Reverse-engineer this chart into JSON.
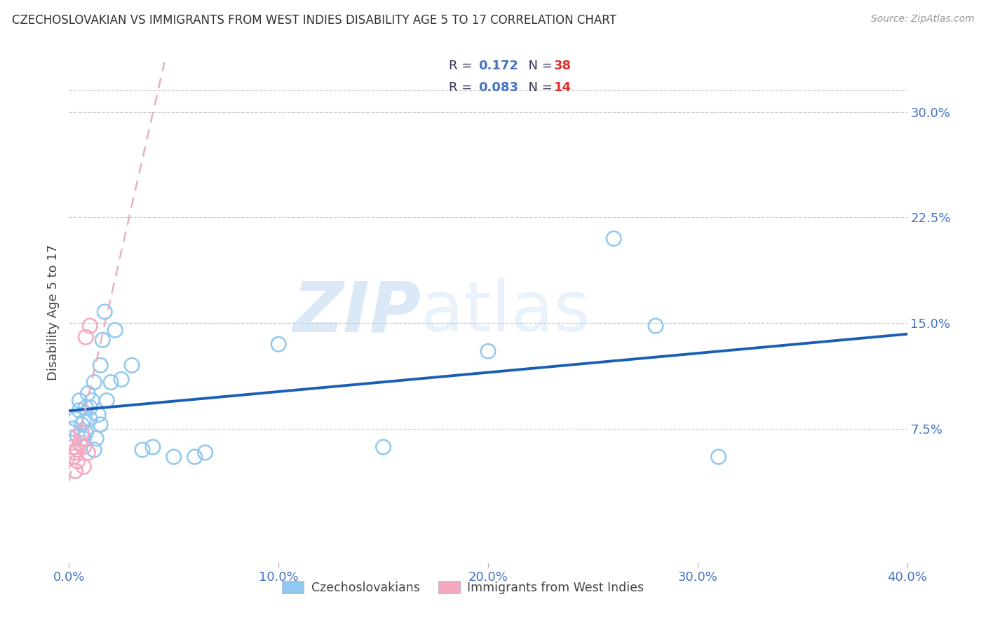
{
  "title": "CZECHOSLOVAKIAN VS IMMIGRANTS FROM WEST INDIES DISABILITY AGE 5 TO 17 CORRELATION CHART",
  "source": "Source: ZipAtlas.com",
  "ylabel": "Disability Age 5 to 17",
  "xlim": [
    0.0,
    0.4
  ],
  "ylim": [
    -0.02,
    0.335
  ],
  "xlabel_vals": [
    0.0,
    0.1,
    0.2,
    0.3,
    0.4
  ],
  "xlabel_labels": [
    "0.0%",
    "10.0%",
    "20.0%",
    "30.0%",
    "40.0%"
  ],
  "ylabel_vals": [
    0.075,
    0.15,
    0.225,
    0.3
  ],
  "ylabel_labels": [
    "7.5%",
    "15.0%",
    "22.5%",
    "30.0%"
  ],
  "color_blue": "#90C8F0",
  "color_pink": "#F5A8C0",
  "trendline_blue": "#1A5FB4",
  "trendline_pink": "#E8B0C0",
  "grid_color": "#CCCCCC",
  "tick_color": "#4472C4",
  "title_color": "#333333",
  "source_color": "#999999",
  "legend1_label": "Czechoslovakians",
  "legend2_label": "Immigrants from West Indies",
  "R1": "0.172",
  "N1": "38",
  "R2": "0.083",
  "N2": "14",
  "watermark_zip": "ZIP",
  "watermark_atlas": "atlas",
  "blue_x": [
    0.002,
    0.003,
    0.004,
    0.005,
    0.005,
    0.006,
    0.007,
    0.007,
    0.008,
    0.008,
    0.009,
    0.01,
    0.01,
    0.011,
    0.012,
    0.012,
    0.013,
    0.014,
    0.015,
    0.015,
    0.016,
    0.017,
    0.018,
    0.02,
    0.022,
    0.025,
    0.03,
    0.035,
    0.04,
    0.05,
    0.06,
    0.065,
    0.1,
    0.15,
    0.2,
    0.26,
    0.28,
    0.31
  ],
  "blue_y": [
    0.075,
    0.082,
    0.07,
    0.088,
    0.095,
    0.078,
    0.068,
    0.08,
    0.072,
    0.09,
    0.1,
    0.082,
    0.09,
    0.095,
    0.06,
    0.108,
    0.068,
    0.085,
    0.078,
    0.12,
    0.138,
    0.158,
    0.095,
    0.108,
    0.145,
    0.11,
    0.12,
    0.06,
    0.062,
    0.055,
    0.055,
    0.058,
    0.135,
    0.062,
    0.13,
    0.21,
    0.148,
    0.055
  ],
  "pink_x": [
    0.001,
    0.002,
    0.002,
    0.003,
    0.003,
    0.004,
    0.004,
    0.005,
    0.006,
    0.007,
    0.007,
    0.008,
    0.009,
    0.01
  ],
  "pink_y": [
    0.068,
    0.062,
    0.055,
    0.058,
    0.045,
    0.052,
    0.06,
    0.065,
    0.072,
    0.048,
    0.062,
    0.14,
    0.058,
    0.148
  ]
}
